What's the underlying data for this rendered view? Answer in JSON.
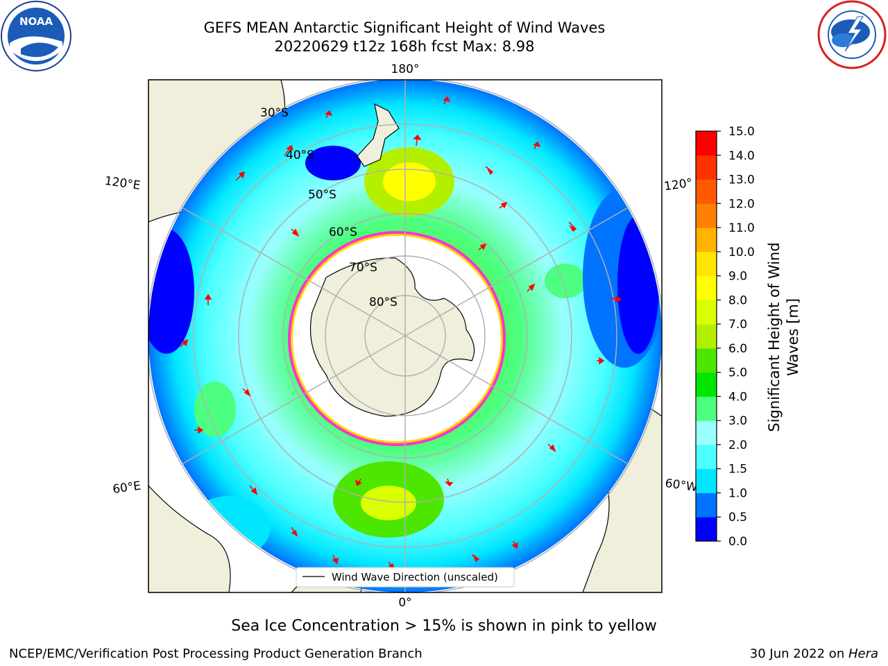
{
  "title_line1": "GEFS MEAN Antarctic Significant Height of Wind Waves",
  "title_line2": "20220629 t12z 168h fcst   Max: 8.98",
  "subtitle": "Sea Ice Concentration > 15% is shown in pink to yellow",
  "footer_left": "NCEP/EMC/Verification Post Processing Product Generation Branch",
  "footer_right_prefix": "30 Jun 2022 on ",
  "footer_right_host": "Hera",
  "legend_label": "Wind Wave Direction (unscaled)",
  "longitude_labels": {
    "top": "180°",
    "bottom": "0°",
    "left_upper": "120°E",
    "left_lower": "60°E",
    "right_upper": "120°",
    "right_lower": "60°W"
  },
  "latitude_labels": [
    "30°S",
    "40°S",
    "50°S",
    "60°S",
    "70°S",
    "80°S"
  ],
  "colorbar": {
    "label": "Significant Height of Wind Waves [m]",
    "label_line1": "Significant Height of Wind",
    "label_line2": "Waves [m]",
    "ticks": [
      "0.0",
      "0.5",
      "1.0",
      "1.5",
      "2.0",
      "3.0",
      "4.0",
      "5.0",
      "6.0",
      "7.0",
      "8.0",
      "9.0",
      "10.0",
      "11.0",
      "12.0",
      "13.0",
      "14.0",
      "15.0"
    ],
    "colors": [
      "#0000ff",
      "#0073ff",
      "#00e6ff",
      "#4dffff",
      "#99ffff",
      "#4dff80",
      "#00e600",
      "#4de600",
      "#b3f000",
      "#d9ff00",
      "#ffff00",
      "#ffe600",
      "#ffb300",
      "#ff8000",
      "#ff5a00",
      "#ff3300",
      "#ff0000"
    ]
  },
  "logos": {
    "left": "NOAA",
    "right": "NATIONAL WEATHER SERVICE"
  },
  "colors": {
    "land": "#efefdc",
    "ice": "#ffffff",
    "grid": "#b0b0b0",
    "arrow": "#ff0000",
    "ice_edge": "#ff33cc"
  }
}
